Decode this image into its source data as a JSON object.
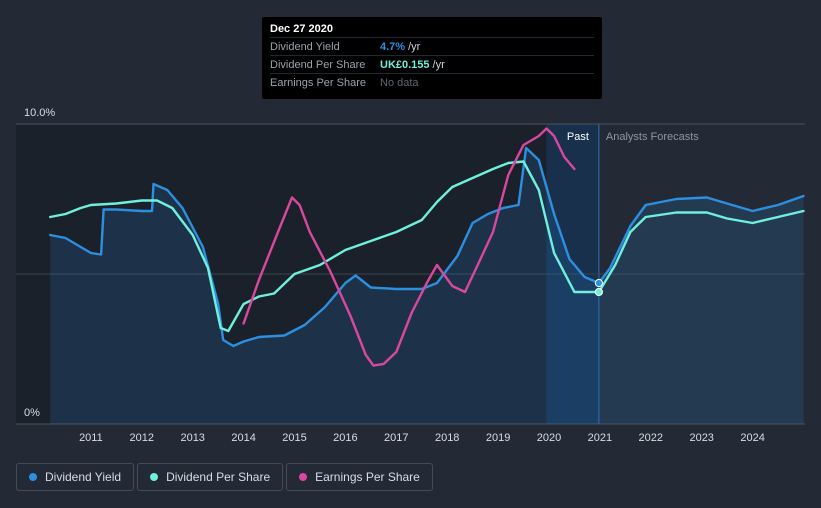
{
  "tooltip": {
    "date": "Dec 27 2020",
    "rows": [
      {
        "label": "Dividend Yield",
        "value": "4.7%",
        "unit": "/yr",
        "color": "#2c8fdf"
      },
      {
        "label": "Dividend Per Share",
        "value": "UK£0.155",
        "unit": "/yr",
        "color": "#6ff0dc"
      },
      {
        "label": "Earnings Per Share",
        "value": "No data",
        "unit": ""
      }
    ]
  },
  "legend": [
    {
      "label": "Dividend Yield",
      "color": "#2c8fdf"
    },
    {
      "label": "Dividend Per Share",
      "color": "#6ff0dc"
    },
    {
      "label": "Earnings Per Share",
      "color": "#d9489e"
    }
  ],
  "chart_data": {
    "type": "line",
    "x_range": [
      2010.2,
      2025.0
    ],
    "y_label_top": "10.0%",
    "y_label_bottom": "0%",
    "ylim": [
      0,
      10
    ],
    "xticks": [
      "2011",
      "2012",
      "2013",
      "2014",
      "2015",
      "2016",
      "2017",
      "2018",
      "2019",
      "2020",
      "2021",
      "2022",
      "2023",
      "2024"
    ],
    "region_labels": {
      "past": "Past",
      "forecast": "Analysts Forecasts"
    },
    "past_start": 2019.95,
    "forecast_start": 2020.98,
    "series": [
      {
        "name": "Dividend Yield",
        "color": "#2c8fdf",
        "area": true,
        "points": [
          [
            2010.2,
            6.3
          ],
          [
            2010.5,
            6.2
          ],
          [
            2010.8,
            5.9
          ],
          [
            2011.0,
            5.7
          ],
          [
            2011.2,
            5.65
          ],
          [
            2011.25,
            7.15
          ],
          [
            2011.5,
            7.15
          ],
          [
            2012.0,
            7.1
          ],
          [
            2012.2,
            7.1
          ],
          [
            2012.23,
            8.0
          ],
          [
            2012.5,
            7.8
          ],
          [
            2012.8,
            7.2
          ],
          [
            2013.2,
            5.9
          ],
          [
            2013.5,
            4.0
          ],
          [
            2013.6,
            2.8
          ],
          [
            2013.8,
            2.6
          ],
          [
            2014.0,
            2.75
          ],
          [
            2014.3,
            2.9
          ],
          [
            2014.8,
            2.95
          ],
          [
            2015.2,
            3.3
          ],
          [
            2015.6,
            3.9
          ],
          [
            2016.0,
            4.7
          ],
          [
            2016.2,
            4.95
          ],
          [
            2016.5,
            4.55
          ],
          [
            2017.0,
            4.5
          ],
          [
            2017.5,
            4.5
          ],
          [
            2017.8,
            4.7
          ],
          [
            2018.2,
            5.6
          ],
          [
            2018.5,
            6.7
          ],
          [
            2018.8,
            7.0
          ],
          [
            2019.1,
            7.2
          ],
          [
            2019.4,
            7.3
          ],
          [
            2019.55,
            9.2
          ],
          [
            2019.8,
            8.8
          ],
          [
            2020.1,
            7.0
          ],
          [
            2020.4,
            5.5
          ],
          [
            2020.7,
            4.9
          ],
          [
            2020.98,
            4.7
          ],
          [
            2021.2,
            5.2
          ],
          [
            2021.6,
            6.6
          ],
          [
            2021.9,
            7.3
          ],
          [
            2022.5,
            7.5
          ],
          [
            2023.1,
            7.55
          ],
          [
            2023.5,
            7.35
          ],
          [
            2024.0,
            7.1
          ],
          [
            2024.5,
            7.3
          ],
          [
            2025.0,
            7.6
          ]
        ]
      },
      {
        "name": "Dividend Per Share",
        "color": "#6ff0dc",
        "area": false,
        "points": [
          [
            2010.2,
            6.9
          ],
          [
            2010.5,
            7.0
          ],
          [
            2010.8,
            7.2
          ],
          [
            2011.0,
            7.3
          ],
          [
            2011.5,
            7.35
          ],
          [
            2012.0,
            7.45
          ],
          [
            2012.3,
            7.45
          ],
          [
            2012.6,
            7.2
          ],
          [
            2013.0,
            6.3
          ],
          [
            2013.3,
            5.2
          ],
          [
            2013.55,
            3.2
          ],
          [
            2013.7,
            3.1
          ],
          [
            2014.0,
            4.0
          ],
          [
            2014.3,
            4.25
          ],
          [
            2014.6,
            4.35
          ],
          [
            2015.0,
            5.0
          ],
          [
            2015.5,
            5.3
          ],
          [
            2016.0,
            5.8
          ],
          [
            2016.5,
            6.1
          ],
          [
            2017.0,
            6.4
          ],
          [
            2017.5,
            6.8
          ],
          [
            2017.8,
            7.4
          ],
          [
            2018.1,
            7.9
          ],
          [
            2018.5,
            8.2
          ],
          [
            2018.9,
            8.5
          ],
          [
            2019.2,
            8.7
          ],
          [
            2019.5,
            8.75
          ],
          [
            2019.8,
            7.8
          ],
          [
            2020.1,
            5.7
          ],
          [
            2020.5,
            4.4
          ],
          [
            2020.98,
            4.4
          ],
          [
            2021.3,
            5.3
          ],
          [
            2021.6,
            6.4
          ],
          [
            2021.9,
            6.9
          ],
          [
            2022.5,
            7.05
          ],
          [
            2023.1,
            7.05
          ],
          [
            2023.5,
            6.85
          ],
          [
            2024.0,
            6.7
          ],
          [
            2024.5,
            6.9
          ],
          [
            2025.0,
            7.1
          ]
        ]
      },
      {
        "name": "Earnings Per Share",
        "color": "#d9489e",
        "area": false,
        "points": [
          [
            2014.0,
            3.35
          ],
          [
            2014.3,
            4.8
          ],
          [
            2014.7,
            6.5
          ],
          [
            2014.95,
            7.55
          ],
          [
            2015.1,
            7.3
          ],
          [
            2015.3,
            6.4
          ],
          [
            2015.7,
            5.1
          ],
          [
            2016.1,
            3.6
          ],
          [
            2016.4,
            2.3
          ],
          [
            2016.55,
            1.95
          ],
          [
            2016.75,
            2.0
          ],
          [
            2017.0,
            2.4
          ],
          [
            2017.3,
            3.7
          ],
          [
            2017.6,
            4.7
          ],
          [
            2017.8,
            5.3
          ],
          [
            2018.1,
            4.6
          ],
          [
            2018.35,
            4.4
          ],
          [
            2018.6,
            5.3
          ],
          [
            2018.9,
            6.4
          ],
          [
            2019.2,
            8.3
          ],
          [
            2019.5,
            9.3
          ],
          [
            2019.8,
            9.6
          ],
          [
            2019.95,
            9.85
          ],
          [
            2020.1,
            9.6
          ],
          [
            2020.3,
            8.9
          ],
          [
            2020.5,
            8.5
          ]
        ]
      }
    ],
    "markers": [
      {
        "x": 2020.98,
        "y": 4.7,
        "color": "#2c8fdf"
      },
      {
        "x": 2020.98,
        "y": 4.4,
        "color": "#6ff0dc"
      }
    ]
  }
}
